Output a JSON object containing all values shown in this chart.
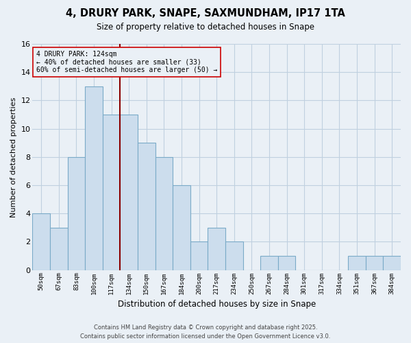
{
  "title": "4, DRURY PARK, SNAPE, SAXMUNDHAM, IP17 1TA",
  "subtitle": "Size of property relative to detached houses in Snape",
  "xlabel": "Distribution of detached houses by size in Snape",
  "ylabel": "Number of detached properties",
  "categories": [
    "50sqm",
    "67sqm",
    "83sqm",
    "100sqm",
    "117sqm",
    "134sqm",
    "150sqm",
    "167sqm",
    "184sqm",
    "200sqm",
    "217sqm",
    "234sqm",
    "250sqm",
    "267sqm",
    "284sqm",
    "301sqm",
    "317sqm",
    "334sqm",
    "351sqm",
    "367sqm",
    "384sqm"
  ],
  "values": [
    4,
    3,
    8,
    13,
    11,
    11,
    9,
    8,
    6,
    2,
    3,
    2,
    0,
    1,
    1,
    0,
    0,
    0,
    1,
    1,
    1
  ],
  "bar_color": "#ccdded",
  "bar_edge_color": "#7aaac8",
  "background_color": "#eaf0f6",
  "grid_color": "#d8e4ee",
  "vline_color": "#8b0000",
  "vline_idx": 4,
  "annotation_text_line1": "4 DRURY PARK: 124sqm",
  "annotation_text_line2": "← 40% of detached houses are smaller (33)",
  "annotation_text_line3": "60% of semi-detached houses are larger (50) →",
  "ylim": [
    0,
    16
  ],
  "yticks": [
    0,
    2,
    4,
    6,
    8,
    10,
    12,
    14,
    16
  ],
  "footer_line1": "Contains HM Land Registry data © Crown copyright and database right 2025.",
  "footer_line2": "Contains public sector information licensed under the Open Government Licence v3.0."
}
